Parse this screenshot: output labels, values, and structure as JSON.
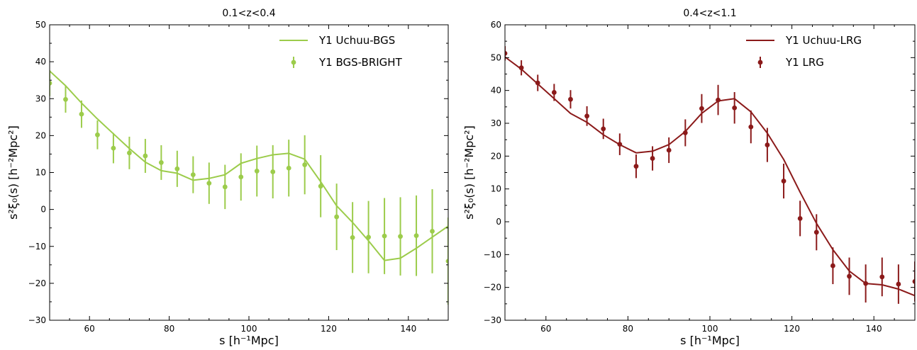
{
  "chart_data": [
    {
      "type": "line",
      "title": "0.1<z<0.4",
      "xlabel": "s [h⁻¹Mpc]",
      "ylabel": "s²ξ₀(s) [h⁻²Mpc²]",
      "xlim": [
        50,
        150
      ],
      "ylim": [
        -30,
        50
      ],
      "xticks": [
        60,
        80,
        100,
        120,
        140
      ],
      "yticks": [
        -30,
        -20,
        -10,
        0,
        10,
        20,
        30,
        40,
        50
      ],
      "grid": false,
      "legend": "top-right",
      "color": "#9ccc4b",
      "series": [
        {
          "name": "Y1 Uchuu-BGS",
          "kind": "line",
          "x": [
            50,
            54,
            58,
            62,
            66,
            70,
            74,
            78,
            82,
            86,
            90,
            94,
            98,
            102,
            106,
            110,
            114,
            118,
            122,
            126,
            130,
            134,
            138,
            142,
            146,
            150
          ],
          "y": [
            37.5,
            33.5,
            28.8,
            24.5,
            20.5,
            16.5,
            12.8,
            10.5,
            9.8,
            7.9,
            8.4,
            9.4,
            12.5,
            13.8,
            14.8,
            15.2,
            13.6,
            7.5,
            1.0,
            -3.5,
            -8.5,
            -13.8,
            -13.2,
            -10.5,
            -7.5,
            -4.5
          ]
        },
        {
          "name": "Y1 BGS-BRIGHT",
          "kind": "errorbar",
          "x": [
            50,
            54,
            58,
            62,
            66,
            70,
            74,
            78,
            82,
            86,
            90,
            94,
            98,
            102,
            106,
            110,
            114,
            118,
            122,
            126,
            130,
            134,
            138,
            142,
            146,
            150
          ],
          "y": [
            34.2,
            29.8,
            25.8,
            20.2,
            16.6,
            15.3,
            14.5,
            12.7,
            11.0,
            9.4,
            7.1,
            6.1,
            8.8,
            10.4,
            10.2,
            11.2,
            12.1,
            6.3,
            -2.0,
            -7.6,
            -7.5,
            -7.2,
            -7.3,
            -7.1,
            -5.9,
            -14.0
          ],
          "err": [
            3.5,
            3.6,
            3.7,
            3.9,
            4.1,
            4.4,
            4.6,
            4.7,
            4.9,
            5.0,
            5.6,
            6.0,
            6.4,
            6.9,
            7.2,
            7.7,
            8.0,
            8.4,
            9.0,
            9.6,
            9.8,
            10.3,
            10.6,
            10.9,
            11.4,
            11.8
          ]
        }
      ]
    },
    {
      "type": "line",
      "title": "0.4<z<1.1",
      "xlabel": "s [h⁻¹Mpc]",
      "ylabel": "s²ξ₀(s) [h⁻²Mpc²]",
      "xlim": [
        50,
        150
      ],
      "ylim": [
        -30,
        60
      ],
      "xticks": [
        60,
        80,
        100,
        120,
        140
      ],
      "yticks": [
        -30,
        -20,
        -10,
        0,
        10,
        20,
        30,
        40,
        50,
        60
      ],
      "grid": false,
      "legend": "top-right",
      "color": "#8b1a1a",
      "series": [
        {
          "name": "Y1 Uchuu-LRG",
          "kind": "line",
          "x": [
            50,
            54,
            58,
            62,
            66,
            70,
            74,
            78,
            82,
            86,
            90,
            94,
            98,
            102,
            106,
            110,
            114,
            118,
            122,
            126,
            130,
            134,
            138,
            142,
            146,
            150
          ],
          "y": [
            50.2,
            46.5,
            42.0,
            37.5,
            33.0,
            30.3,
            26.5,
            23.5,
            21.0,
            21.5,
            23.5,
            27.5,
            33.0,
            36.8,
            37.5,
            33.5,
            27.0,
            19.0,
            9.0,
            -0.5,
            -8.5,
            -15.0,
            -18.8,
            -19.2,
            -20.5,
            -22.5
          ]
        },
        {
          "name": "Y1 LRG",
          "kind": "errorbar",
          "x": [
            50,
            54,
            58,
            62,
            66,
            70,
            74,
            78,
            82,
            86,
            90,
            94,
            98,
            102,
            106,
            110,
            114,
            118,
            122,
            126,
            130,
            134,
            138,
            142,
            146,
            150
          ],
          "y": [
            51.3,
            46.9,
            42.3,
            39.4,
            37.3,
            32.2,
            28.3,
            23.6,
            16.9,
            19.3,
            21.8,
            27.1,
            34.5,
            37.1,
            34.7,
            28.9,
            23.4,
            12.4,
            1.0,
            -3.2,
            -13.4,
            -16.6,
            -18.8,
            -16.8,
            -19.0,
            -18.2
          ],
          "err": [
            2.2,
            2.3,
            2.5,
            2.6,
            2.8,
            3.0,
            3.1,
            3.3,
            3.6,
            3.7,
            3.9,
            4.1,
            4.4,
            4.6,
            4.8,
            5.0,
            5.2,
            5.3,
            5.4,
            5.5,
            5.6,
            5.7,
            5.8,
            5.9,
            6.0,
            6.1
          ]
        }
      ]
    }
  ]
}
